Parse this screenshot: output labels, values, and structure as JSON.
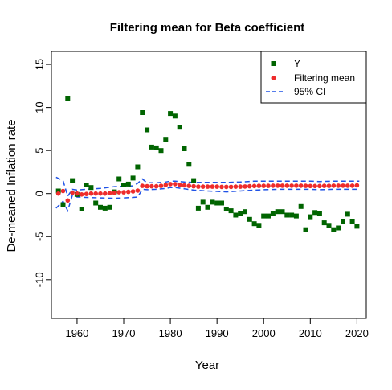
{
  "chart_data": {
    "type": "scatter",
    "title": "Filtering mean for Beta coefficient",
    "xlabel": "Year",
    "ylabel": "De-meaned Inflation rate",
    "xlim": [
      1954.5,
      2022
    ],
    "ylim": [
      -14.5,
      16.5
    ],
    "x_ticks": [
      1960,
      1970,
      1980,
      1990,
      2000,
      2010,
      2020
    ],
    "y_ticks": [
      -10,
      -5,
      0,
      5,
      10,
      15
    ],
    "grid": false,
    "legend_position": "top-right",
    "series": [
      {
        "name": "Y",
        "color": "#006400",
        "marker": "square",
        "x": [
          1956,
          1957,
          1958,
          1959,
          1960,
          1961,
          1962,
          1963,
          1964,
          1965,
          1966,
          1967,
          1968,
          1969,
          1970,
          1971,
          1972,
          1973,
          1974,
          1975,
          1976,
          1977,
          1978,
          1979,
          1980,
          1981,
          1982,
          1983,
          1984,
          1985,
          1986,
          1987,
          1988,
          1989,
          1990,
          1991,
          1992,
          1993,
          1994,
          1995,
          1996,
          1997,
          1998,
          1999,
          2000,
          2001,
          2002,
          2003,
          2004,
          2005,
          2006,
          2007,
          2008,
          2009,
          2010,
          2011,
          2012,
          2013,
          2014,
          2015,
          2016,
          2017,
          2018,
          2019,
          2020
        ],
        "values": [
          0.3,
          -1.3,
          11.0,
          1.5,
          -0.1,
          -1.8,
          1.0,
          0.7,
          -1.1,
          -1.6,
          -1.7,
          -1.6,
          0.2,
          1.7,
          1.0,
          1.1,
          1.8,
          3.1,
          9.4,
          7.4,
          5.4,
          5.3,
          5.0,
          6.3,
          9.3,
          9.0,
          7.7,
          5.2,
          3.4,
          1.5,
          -1.7,
          -1.0,
          -1.6,
          -1.0,
          -1.1,
          -1.1,
          -1.8,
          -2.0,
          -2.5,
          -2.3,
          -2.1,
          -3.0,
          -3.5,
          -3.7,
          -2.6,
          -2.6,
          -2.3,
          -2.1,
          -2.1,
          -2.5,
          -2.5,
          -2.6,
          -1.5,
          -4.2,
          -2.7,
          -2.2,
          -2.3,
          -3.4,
          -3.7,
          -4.2,
          -4.0,
          -3.2,
          -2.4,
          -3.2,
          -3.8
        ]
      },
      {
        "name": "Filtering mean",
        "color": "#ee2c2c",
        "marker": "circle",
        "x": [
          1956,
          1957,
          1958,
          1959,
          1960,
          1961,
          1962,
          1963,
          1964,
          1965,
          1966,
          1967,
          1968,
          1969,
          1970,
          1971,
          1972,
          1973,
          1974,
          1975,
          1976,
          1977,
          1978,
          1979,
          1980,
          1981,
          1982,
          1983,
          1984,
          1985,
          1986,
          1987,
          1988,
          1989,
          1990,
          1991,
          1992,
          1993,
          1994,
          1995,
          1996,
          1997,
          1998,
          1999,
          2000,
          2001,
          2002,
          2003,
          2004,
          2005,
          2006,
          2007,
          2008,
          2009,
          2010,
          2011,
          2012,
          2013,
          2014,
          2015,
          2016,
          2017,
          2018,
          2019,
          2020
        ],
        "values": [
          0.0,
          0.3,
          -0.8,
          0.1,
          0.0,
          -0.1,
          -0.05,
          0.0,
          0.0,
          0.0,
          0.0,
          0.05,
          0.1,
          0.15,
          0.15,
          0.2,
          0.25,
          0.35,
          0.9,
          0.85,
          0.85,
          0.85,
          0.9,
          1.0,
          1.1,
          1.1,
          1.0,
          0.95,
          0.9,
          0.85,
          0.8,
          0.8,
          0.8,
          0.8,
          0.8,
          0.78,
          0.78,
          0.78,
          0.8,
          0.8,
          0.82,
          0.85,
          0.88,
          0.9,
          0.9,
          0.9,
          0.92,
          0.92,
          0.92,
          0.92,
          0.92,
          0.92,
          0.92,
          0.9,
          0.88,
          0.88,
          0.88,
          0.9,
          0.9,
          0.92,
          0.92,
          0.92,
          0.92,
          0.92,
          0.95
        ]
      },
      {
        "name": "95% CI",
        "color": "#1f52e6",
        "line_style": "dashed",
        "x": [
          1955.5,
          1957,
          1958,
          1959,
          1960,
          1962,
          1965,
          1968,
          1970,
          1972,
          1973,
          1974,
          1975,
          1977,
          1979,
          1980,
          1981,
          1983,
          1985,
          1988,
          1990,
          1992,
          1995,
          1998,
          2000,
          2003,
          2006,
          2009,
          2010,
          2012,
          2015,
          2018,
          2020.5
        ],
        "upper": [
          1.9,
          1.5,
          -0.3,
          0.5,
          0.4,
          0.5,
          0.6,
          0.8,
          0.85,
          0.9,
          1.2,
          1.7,
          1.25,
          1.25,
          1.35,
          1.45,
          1.45,
          1.35,
          1.3,
          1.3,
          1.3,
          1.3,
          1.35,
          1.45,
          1.45,
          1.45,
          1.45,
          1.45,
          1.45,
          1.4,
          1.45,
          1.45,
          1.45
        ],
        "lower": [
          -1.7,
          -0.9,
          -2.0,
          -0.2,
          -0.4,
          -0.45,
          -0.5,
          -0.55,
          -0.5,
          -0.45,
          -0.4,
          0.5,
          0.45,
          0.5,
          0.6,
          0.7,
          0.7,
          0.55,
          0.4,
          0.3,
          0.25,
          0.2,
          0.3,
          0.4,
          0.45,
          0.5,
          0.5,
          0.5,
          0.5,
          0.45,
          0.5,
          0.5,
          0.5
        ]
      }
    ]
  }
}
